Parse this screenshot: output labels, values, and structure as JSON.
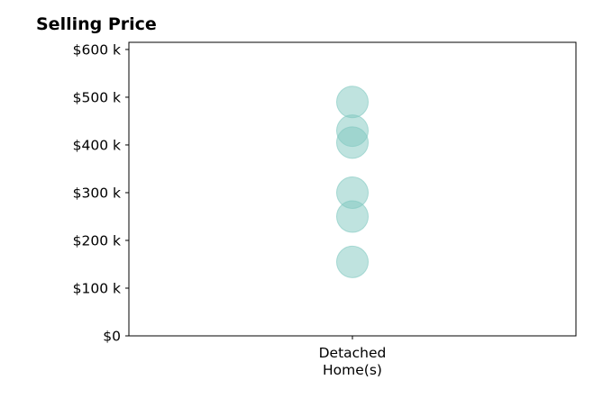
{
  "chart_data": {
    "type": "scatter",
    "title": "Selling Price",
    "xlabel": "",
    "ylabel": "",
    "categories": [
      "Detached\nHome(s)"
    ],
    "ylim": [
      0,
      615000
    ],
    "y_ticks": [
      0,
      100000,
      200000,
      300000,
      400000,
      500000,
      600000
    ],
    "y_tick_labels": [
      "$0",
      "$100 k",
      "$200 k",
      "$300 k",
      "$400 k",
      "$500 k",
      "$600 k"
    ],
    "series": [
      {
        "category": "Detached\nHome(s)",
        "values": [
          490000,
          430000,
          405000,
          300000,
          250000,
          155000
        ],
        "color": "#7fc8c0"
      }
    ],
    "grid": false,
    "legend": "none"
  }
}
